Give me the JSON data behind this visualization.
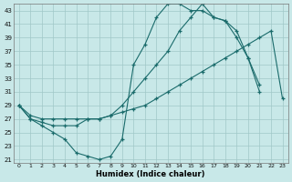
{
  "xlabel": "Humidex (Indice chaleur)",
  "bg_color": "#c8e8e8",
  "line_color": "#1a6b6b",
  "grid_color": "#a0c8c8",
  "xlim": [
    -0.5,
    23.5
  ],
  "ylim": [
    20.5,
    44
  ],
  "xticks": [
    0,
    1,
    2,
    3,
    4,
    5,
    6,
    7,
    8,
    9,
    10,
    11,
    12,
    13,
    14,
    15,
    16,
    17,
    18,
    19,
    20,
    21,
    22,
    23
  ],
  "yticks": [
    21,
    23,
    25,
    27,
    29,
    31,
    33,
    35,
    37,
    39,
    41,
    43
  ],
  "line1_x": [
    0,
    1,
    2,
    3,
    4,
    5,
    6,
    7,
    8,
    9,
    10,
    11,
    12,
    13,
    14,
    15,
    16,
    17,
    18,
    19,
    20,
    21,
    22
  ],
  "line1_y": [
    29,
    27,
    26,
    25,
    24,
    22,
    21.5,
    21,
    21.5,
    24,
    35,
    38,
    42,
    44,
    44,
    43,
    43,
    42,
    41.5,
    40,
    36,
    31,
    null
  ],
  "line2_x": [
    0,
    1,
    2,
    3,
    4,
    5,
    6,
    7,
    8,
    9,
    10,
    11,
    12,
    13,
    14,
    15,
    16,
    17,
    18,
    19,
    20,
    21,
    22,
    23
  ],
  "line2_y": [
    29,
    27.5,
    27,
    27,
    27,
    27,
    27,
    27,
    27.5,
    28,
    28.5,
    29,
    30,
    31,
    32,
    33,
    34,
    35,
    36,
    37,
    38,
    39,
    40,
    30
  ],
  "line3_x": [
    0,
    1,
    2,
    3,
    4,
    5,
    6,
    7,
    8,
    9,
    10,
    11,
    12,
    13,
    14,
    15,
    16,
    17,
    18,
    19,
    20,
    21,
    22,
    23
  ],
  "line3_y": [
    29,
    27,
    26.5,
    26,
    26,
    26,
    27,
    27,
    27.5,
    29,
    31,
    33,
    35,
    37,
    40,
    42,
    44,
    42,
    41.5,
    39,
    36,
    32,
    null,
    null
  ]
}
